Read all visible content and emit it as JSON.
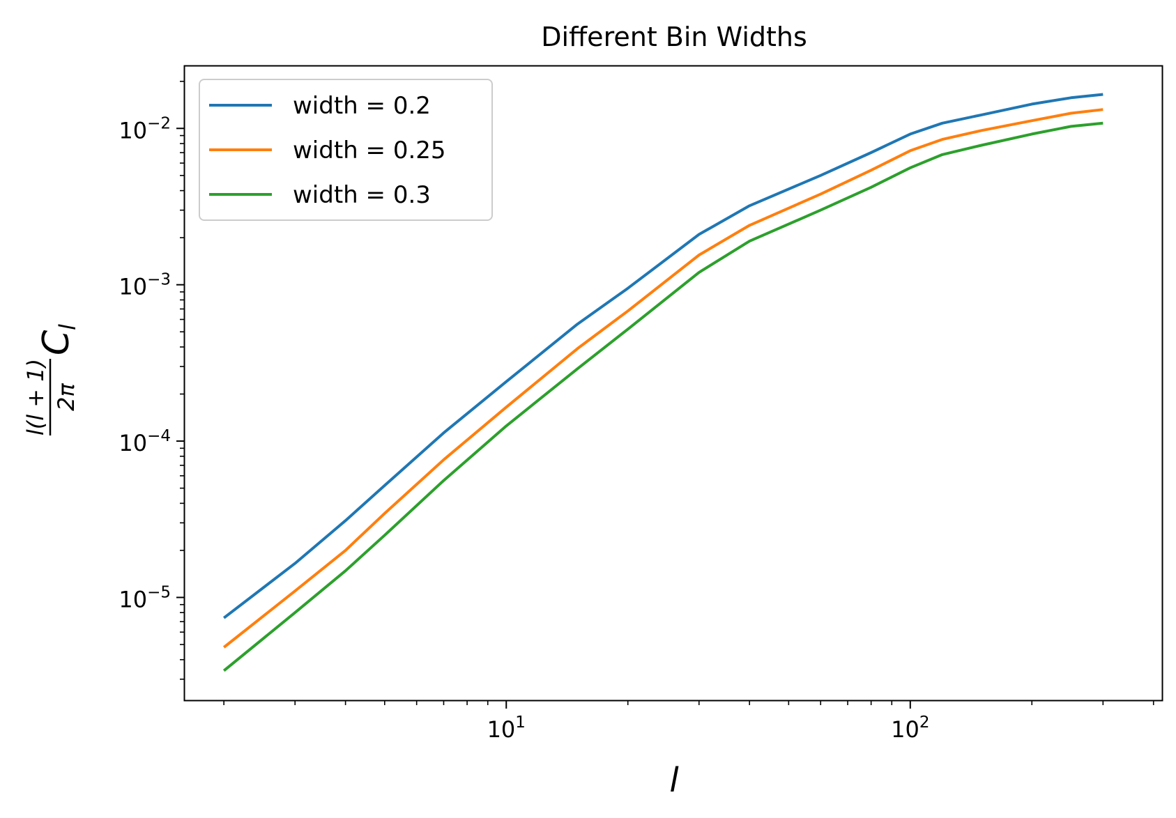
{
  "chart_data": {
    "type": "line",
    "title": "Different Bin Widths",
    "xlabel": "l",
    "ylabel": {
      "numerator": "l(l + 1)",
      "denominator": "2π",
      "symbol": "C",
      "subscript": "l"
    },
    "xscale": "log",
    "yscale": "log",
    "xlim": [
      1.6,
      420
    ],
    "ylim": [
      2.2e-06,
      0.025
    ],
    "x_ticks": [
      {
        "value": 10,
        "base": "10",
        "exp": "1"
      },
      {
        "value": 100,
        "base": "10",
        "exp": "2"
      }
    ],
    "y_ticks": [
      {
        "value": 1e-05,
        "base": "10",
        "exp": "−5"
      },
      {
        "value": 0.0001,
        "base": "10",
        "exp": "−4"
      },
      {
        "value": 0.001,
        "base": "10",
        "exp": "−3"
      },
      {
        "value": 0.01,
        "base": "10",
        "exp": "−2"
      }
    ],
    "grid": false,
    "legend_position": "top-left",
    "series": [
      {
        "name": "width = 0.2",
        "color": "#1f77b4",
        "x": [
          2,
          3,
          4,
          5,
          7,
          10,
          15,
          20,
          30,
          40,
          60,
          80,
          100,
          120,
          150,
          200,
          250,
          300
        ],
        "y": [
          7.4e-06,
          1.65e-05,
          3.1e-05,
          5.2e-05,
          0.000113,
          0.00024,
          0.00056,
          0.00095,
          0.0021,
          0.0032,
          0.005,
          0.007,
          0.0092,
          0.0108,
          0.0122,
          0.0143,
          0.0157,
          0.0165
        ]
      },
      {
        "name": "width = 0.25",
        "color": "#ff7f0e",
        "x": [
          2,
          3,
          4,
          5,
          7,
          10,
          15,
          20,
          30,
          40,
          60,
          80,
          100,
          120,
          150,
          200,
          250,
          300
        ],
        "y": [
          4.8e-06,
          1.1e-05,
          2e-05,
          3.45e-05,
          7.6e-05,
          0.000165,
          0.00039,
          0.00068,
          0.00155,
          0.0024,
          0.0038,
          0.0054,
          0.0072,
          0.0085,
          0.0097,
          0.0112,
          0.0125,
          0.0132
        ]
      },
      {
        "name": "width = 0.3",
        "color": "#2ca02c",
        "x": [
          2,
          3,
          4,
          5,
          7,
          10,
          15,
          20,
          30,
          40,
          60,
          80,
          100,
          120,
          150,
          200,
          250,
          300
        ],
        "y": [
          3.4e-06,
          8e-06,
          1.48e-05,
          2.5e-05,
          5.6e-05,
          0.000125,
          0.00029,
          0.00052,
          0.0012,
          0.0019,
          0.003,
          0.0042,
          0.0056,
          0.0068,
          0.0078,
          0.0092,
          0.0103,
          0.0108
        ]
      }
    ]
  }
}
